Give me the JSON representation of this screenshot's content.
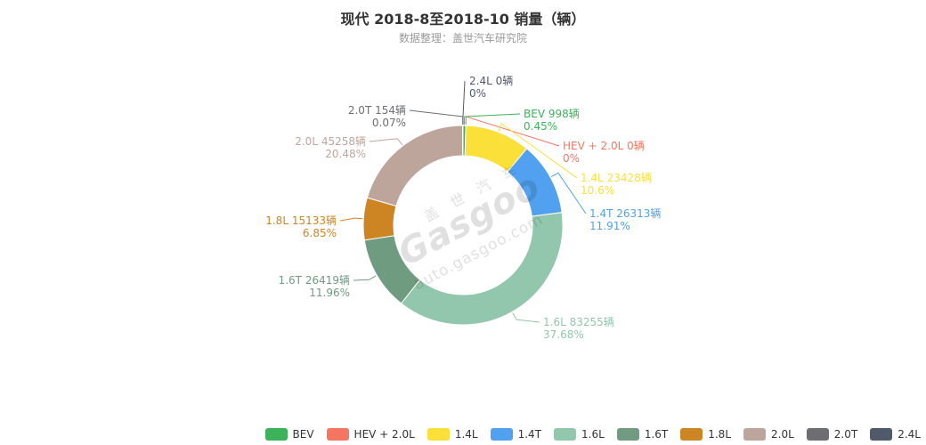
{
  "header": {
    "title": "现代 2018-8至2018-10 销量（辆）",
    "subtitle": "数据整理：盖世汽车研究院"
  },
  "watermark": {
    "top_text": "盖 世 汽 车",
    "logo_text": "Gasgoo",
    "url_text": "auto.gasgoo.com"
  },
  "chart_data": {
    "type": "pie",
    "donut": true,
    "title": "现代 2018-8至2018-10 销量（辆）",
    "unit": "辆",
    "legend_position": "bottom-right",
    "series": [
      {
        "name": "BEV",
        "value": 998,
        "percent": "0.45%",
        "color": "#3cb35a",
        "label": "BEV 998辆"
      },
      {
        "name": "HEV + 2.0L",
        "value": 0,
        "percent": "0%",
        "color": "#f47560",
        "label": "HEV + 2.0L 0辆"
      },
      {
        "name": "1.4L",
        "value": 23428,
        "percent": "10.6%",
        "color": "#fbe03a",
        "label": "1.4L 23428辆"
      },
      {
        "name": "1.4T",
        "value": 26313,
        "percent": "11.91%",
        "color": "#51a1f0",
        "label": "1.4T 26313辆"
      },
      {
        "name": "1.6L",
        "value": 83255,
        "percent": "37.68%",
        "color": "#92c6ad",
        "label": "1.6L 83255辆"
      },
      {
        "name": "1.6T",
        "value": 26419,
        "percent": "11.96%",
        "color": "#6f9c80",
        "label": "1.6T 26419辆"
      },
      {
        "name": "1.8L",
        "value": 15133,
        "percent": "6.85%",
        "color": "#cc8522",
        "label": "1.8L 15133辆"
      },
      {
        "name": "2.0L",
        "value": 45258,
        "percent": "20.48%",
        "color": "#bea59c",
        "label": "2.0L 45258辆"
      },
      {
        "name": "2.0T",
        "value": 154,
        "percent": "0.07%",
        "color": "#6c6e72",
        "label": "2.0T 154辆"
      },
      {
        "name": "2.4L",
        "value": 0,
        "percent": "0%",
        "color": "#4f5b6a",
        "label": "2.4L 0辆"
      }
    ]
  }
}
